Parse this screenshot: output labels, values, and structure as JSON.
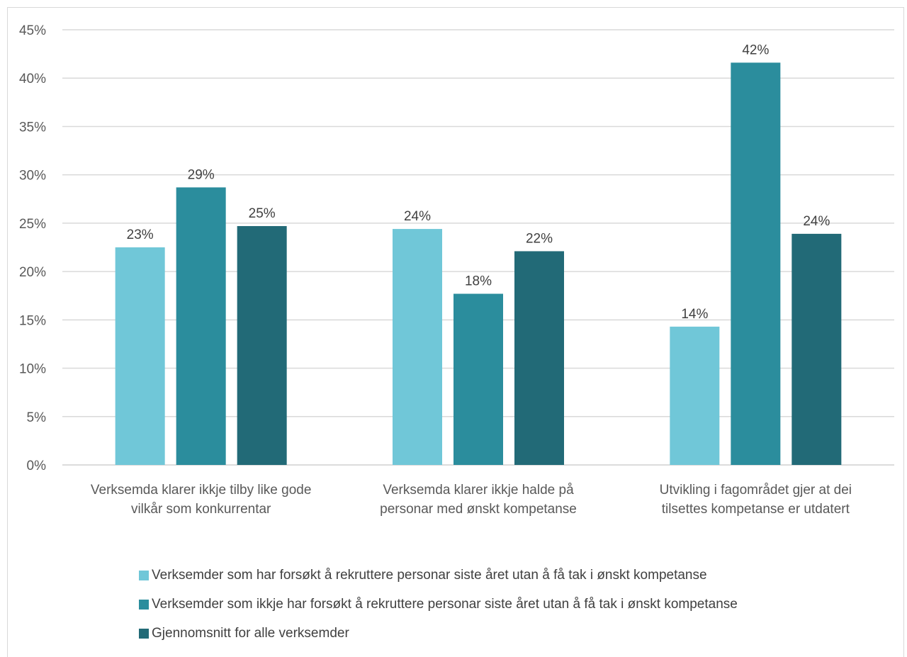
{
  "chart_data": {
    "type": "bar",
    "categories": [
      [
        "Verksemda klarer ikkje tilby like gode",
        "vilkår som konkurrentar"
      ],
      [
        "Verksemda klarer ikkje halde på",
        "personar med ønskt kompetanse"
      ],
      [
        "Utvikling i fagområdet gjer at dei",
        "tilsettes kompetanse er utdatert"
      ]
    ],
    "series": [
      {
        "name": "Verksemder som har forsøkt å rekruttere personar siste året utan å få tak i ønskt kompetanse",
        "color": "#70c7d8",
        "values": [
          22.5,
          24.4,
          14.3
        ],
        "labels": [
          "23%",
          "24%",
          "14%"
        ]
      },
      {
        "name": "Verksemder som ikkje har forsøkt å rekruttere personar siste året utan å få tak i ønskt kompetanse",
        "color": "#2b8d9d",
        "values": [
          28.7,
          17.7,
          41.6
        ],
        "labels": [
          "29%",
          "18%",
          "42%"
        ]
      },
      {
        "name": "Gjennomsnitt for alle verksemder",
        "color": "#226a77",
        "values": [
          24.7,
          22.1,
          23.9
        ],
        "labels": [
          "25%",
          "22%",
          "24%"
        ]
      }
    ],
    "yticks": [
      "0%",
      "5%",
      "10%",
      "15%",
      "20%",
      "25%",
      "30%",
      "35%",
      "40%",
      "45%"
    ],
    "ylim": [
      0,
      45
    ],
    "grid": true,
    "legend_position": "bottom"
  }
}
